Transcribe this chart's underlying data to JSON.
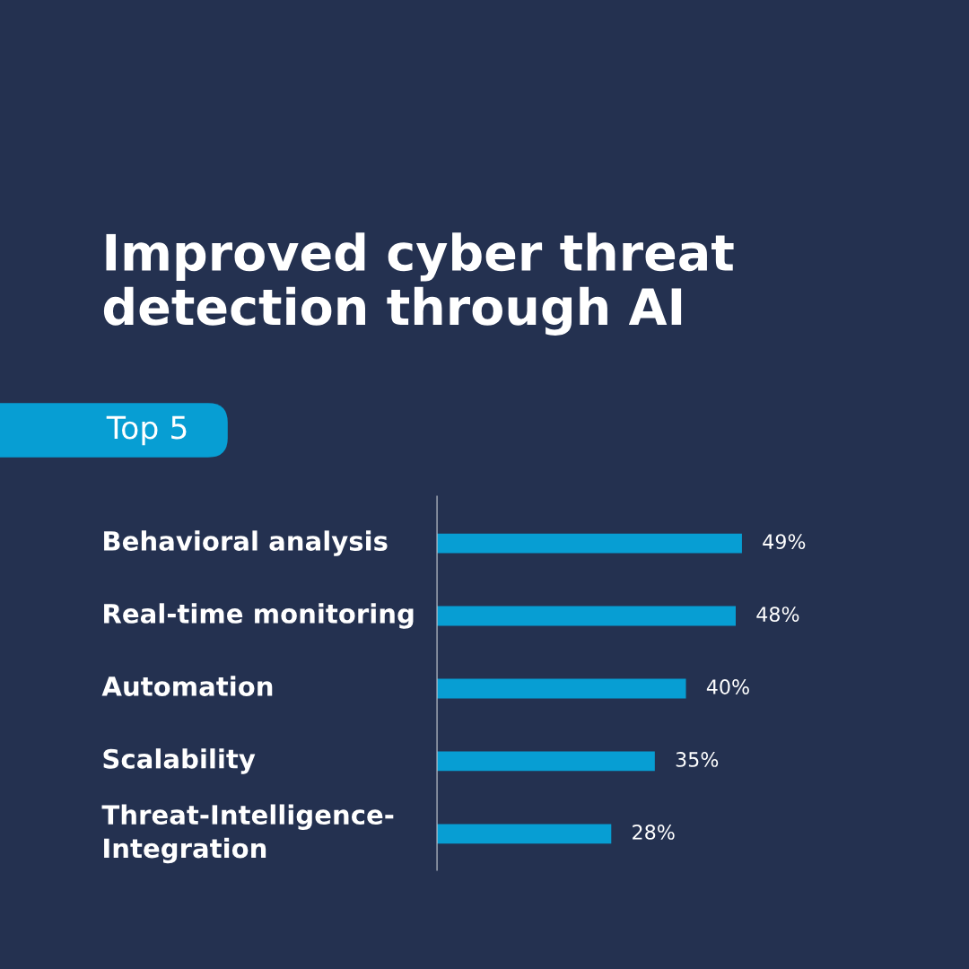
{
  "chart_data": {
    "type": "bar",
    "orientation": "horizontal",
    "title": "Improved cyber threat\ndetection through AI",
    "subtitle": "Top 5",
    "categories": [
      "Behavioral analysis",
      "Real-time monitoring",
      "Automation",
      "Scalability",
      "Threat-Intelligence-\nIntegration"
    ],
    "values": [
      49,
      48,
      40,
      35,
      28
    ],
    "value_labels": [
      "49%",
      "48%",
      "40%",
      "35%",
      "28%"
    ],
    "color": "#079ed3",
    "tick_labels": "y"
  }
}
